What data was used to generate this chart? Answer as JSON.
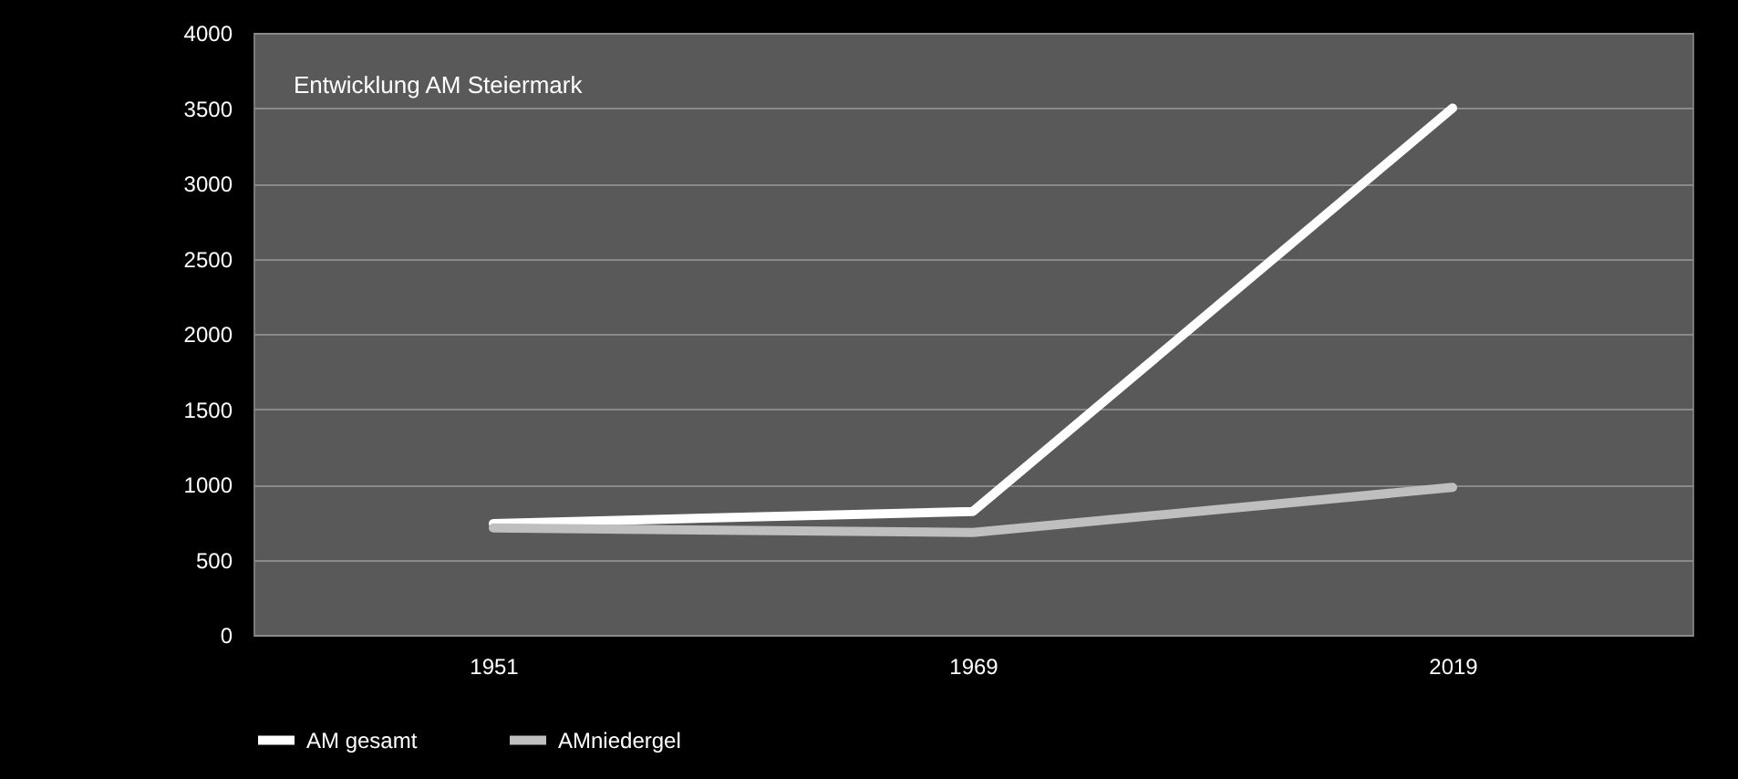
{
  "chart_data": {
    "type": "line",
    "title": "Entwicklung AM Steiermark",
    "categories": [
      "1951",
      "1969",
      "2019"
    ],
    "series": [
      {
        "name": "AM gesamt",
        "color": "#ffffff",
        "values": [
          740,
          820,
          3500
        ]
      },
      {
        "name": "AMniedergel",
        "color": "#bfbfbf",
        "values": [
          710,
          680,
          980
        ]
      }
    ],
    "ylim": [
      0,
      4000
    ],
    "yticks": [
      0,
      500,
      1000,
      1500,
      2000,
      2500,
      3000,
      3500,
      4000
    ],
    "grid": "y",
    "legend": "bottom",
    "marker": "none",
    "line_style": "solid"
  }
}
